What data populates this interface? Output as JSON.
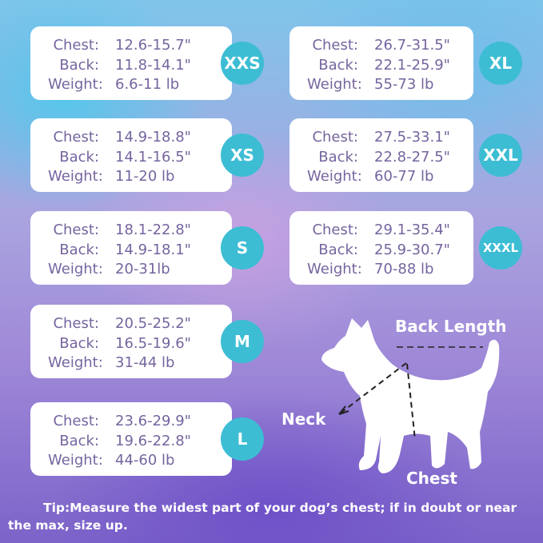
{
  "row_labels": {
    "chest": "Chest:",
    "back": "Back:",
    "weight": "Weight:"
  },
  "sizes": [
    {
      "size": "XXS",
      "chest": "12.6-15.7\"",
      "back": "11.8-14.1\"",
      "weight": "6.6-11 lb"
    },
    {
      "size": "XS",
      "chest": "14.9-18.8\"",
      "back": "14.1-16.5\"",
      "weight": "11-20 lb"
    },
    {
      "size": "S",
      "chest": "18.1-22.8\"",
      "back": "14.9-18.1\"",
      "weight": "20-31lb"
    },
    {
      "size": "M",
      "chest": "20.5-25.2\"",
      "back": "16.5-19.6\"",
      "weight": "31-44 lb"
    },
    {
      "size": "L",
      "chest": "23.6-29.9\"",
      "back": "19.6-22.8\"",
      "weight": "44-60 lb"
    },
    {
      "size": "XL",
      "chest": "26.7-31.5\"",
      "back": "22.1-25.9\"",
      "weight": "55-73 lb"
    },
    {
      "size": "XXL",
      "chest": "27.5-33.1\"",
      "back": "22.8-27.5\"",
      "weight": "60-77 lb"
    },
    {
      "size": "XXXL",
      "chest": "29.1-35.4\"",
      "back": "25.9-30.7\"",
      "weight": "70-88 lb"
    }
  ],
  "diagram": {
    "back_length": "Back Length",
    "neck": "Neck",
    "chest": "Chest"
  },
  "tip": "Tip:Measure the widest part of your dog’s chest; if in doubt or near the max, size up.",
  "colors": {
    "text": "#76659f",
    "badge": "#3dbdd4"
  }
}
